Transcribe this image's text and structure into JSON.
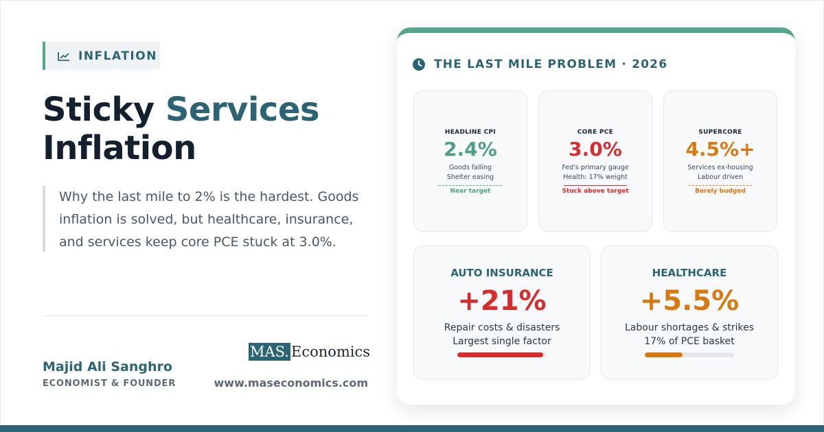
{
  "tag": {
    "label": "INFLATION",
    "icon": "chart-line-icon"
  },
  "title": {
    "part1": "Sticky",
    "accent": "Services",
    "part2": "Inflation"
  },
  "lead": "Why the last mile to 2% is the hardest. Goods inflation is solved, but healthcare, insurance, and services keep core PCE stuck at 3.0%.",
  "author": {
    "name": "Majid Ali Sanghro",
    "role": "ECONOMIST & FOUNDER"
  },
  "brand": {
    "logo_box": "MAS.",
    "logo_rest": "Economics",
    "website": "www.maseconomics.com"
  },
  "card": {
    "icon": "clock-icon",
    "title": "THE LAST MILE PROBLEM · 2026",
    "stats": [
      {
        "label": "HEADLINE CPI",
        "value": "2.4%",
        "desc1": "Goods falling",
        "desc2": "Shelter easing",
        "note": "Near target",
        "color": "#4f9e88",
        "line": "dashed"
      },
      {
        "label": "CORE PCE",
        "value": "3.0%",
        "desc1": "Fed's primary gauge",
        "desc2": "Health: 17% weight",
        "note": "Stuck above target",
        "color": "#d92b2b",
        "line": "solid"
      },
      {
        "label": "SUPERCORE",
        "value": "4.5%+",
        "desc1": "Services ex-housing",
        "desc2": "Labour driven",
        "note": "Barely budged",
        "color": "#d8780f",
        "line": "dashed"
      }
    ],
    "highlights": [
      {
        "label": "AUTO INSURANCE",
        "value": "+21%",
        "desc1": "Repair costs & disasters",
        "desc2": "Largest single factor",
        "color": "#d92b2b",
        "fill": 0.96
      },
      {
        "label": "HEALTHCARE",
        "value": "+5.5%",
        "desc1": "Labour shortages & strikes",
        "desc2": "17% of PCE basket",
        "color": "#d8780f",
        "fill": 0.42
      }
    ]
  },
  "colors": {
    "primary": "#2d6474",
    "green": "#56a48f",
    "dark": "#15202f"
  }
}
